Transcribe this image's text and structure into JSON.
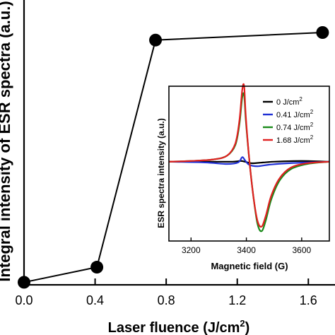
{
  "chart_data": [
    {
      "type": "line",
      "title": "",
      "xlabel": "Laser fluence (J/cm",
      "xlabel_sup": "2",
      "xlabel_end": ")",
      "ylabel": "Integral intensity of ESR spectra (a.u.)",
      "xlim": [
        0.0,
        1.75
      ],
      "xticks": [
        "0.0",
        "0.4",
        "0.8",
        "1.2",
        "1.6"
      ],
      "xtick_values": [
        0.0,
        0.4,
        0.8,
        1.2,
        1.6
      ],
      "ylim": [
        0,
        1.0
      ],
      "grid": false,
      "series": [
        {
          "x": [
            0.0,
            0.41,
            0.74,
            1.68
          ],
          "y": [
            0.01,
            0.07,
            0.97,
            1.0
          ]
        }
      ],
      "colors": {
        "line": "#000000",
        "marker": "#000000"
      }
    },
    {
      "type": "line",
      "title": "",
      "xlabel": "Magnetic field (G)",
      "ylabel": "ESR spectra intensity (a.u.)",
      "xlim": [
        3120,
        3700
      ],
      "xticks": [
        "3200",
        "3400",
        "3600"
      ],
      "xtick_values": [
        3200,
        3400,
        3600
      ],
      "ylim": [
        -1.05,
        1.0
      ],
      "legend_position": "top-right",
      "unit_base": "J/cm",
      "unit_sup": "2",
      "series": [
        {
          "name": "0",
          "color": "#000000",
          "x": [
            3120,
            3200,
            3300,
            3350,
            3380,
            3395,
            3420,
            3460,
            3500,
            3600,
            3700
          ],
          "y": [
            0.0,
            0.0,
            0.0,
            0.0,
            0.01,
            0.0,
            -0.02,
            -0.01,
            0.0,
            0.01,
            0.0
          ]
        },
        {
          "name": "0.41",
          "color": "#1f2fd4",
          "x": [
            3120,
            3250,
            3330,
            3370,
            3385,
            3395,
            3410,
            3440,
            3480,
            3550,
            3700
          ],
          "y": [
            0.0,
            -0.01,
            -0.03,
            -0.01,
            0.06,
            0.02,
            -0.04,
            -0.06,
            -0.04,
            -0.02,
            0.0
          ]
        },
        {
          "name": "0.74",
          "color": "#1a8a1a",
          "x": [
            3120,
            3200,
            3280,
            3330,
            3360,
            3375,
            3385,
            3392,
            3398,
            3410,
            3425,
            3440,
            3455,
            3470,
            3490,
            3520,
            3560,
            3620,
            3700
          ],
          "y": [
            0.0,
            0.01,
            0.03,
            0.08,
            0.22,
            0.5,
            0.85,
            0.88,
            0.55,
            0.05,
            -0.45,
            -0.82,
            -0.92,
            -0.78,
            -0.5,
            -0.25,
            -0.1,
            -0.03,
            0.0
          ]
        },
        {
          "name": "1.68",
          "color": "#e02020",
          "x": [
            3120,
            3200,
            3280,
            3330,
            3360,
            3375,
            3385,
            3392,
            3398,
            3410,
            3425,
            3440,
            3455,
            3470,
            3490,
            3520,
            3560,
            3620,
            3700
          ],
          "y": [
            0.0,
            0.01,
            0.03,
            0.08,
            0.24,
            0.55,
            0.95,
            1.0,
            0.6,
            0.05,
            -0.45,
            -0.78,
            -0.86,
            -0.72,
            -0.45,
            -0.22,
            -0.08,
            -0.02,
            0.0
          ]
        }
      ]
    }
  ]
}
